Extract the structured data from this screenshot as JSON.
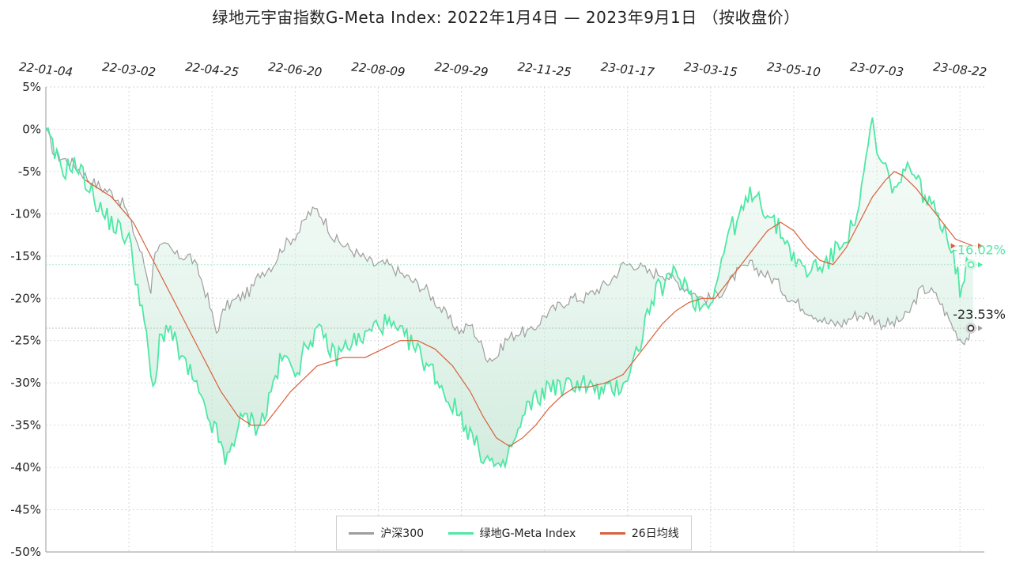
{
  "title": "绿地元宇宙指数G-Meta Index:  2022年1月4日  —  2023年9月1日 （按收盘价）",
  "colors": {
    "hs300": "#9e9e9e",
    "gmeta": "#4de8a4",
    "ma26": "#d9603b",
    "grid": "#d6d6d6"
  },
  "legend": [
    {
      "label": "沪深300",
      "color": "#9e9e9e"
    },
    {
      "label": "绿地G-Meta Index",
      "color": "#4de8a4"
    },
    {
      "label": "26日均线",
      "color": "#d9603b"
    }
  ],
  "end_labels": {
    "gmeta": "-16.02%",
    "hs300": "-23.53%"
  },
  "chart_data": {
    "type": "line",
    "title": "绿地元宇宙指数G-Meta Index:  2022年1月4日  —  2023年9月1日 （按收盘价）",
    "x_ticks": [
      "22-01-04",
      "22-03-02",
      "22-04-25",
      "22-06-20",
      "22-08-09",
      "22-09-29",
      "22-11-25",
      "23-01-17",
      "23-03-15",
      "23-05-10",
      "23-07-03",
      "23-08-22"
    ],
    "x_tick_indices": [
      0,
      38,
      76,
      114,
      152,
      190,
      228,
      266,
      304,
      342,
      380,
      418
    ],
    "x_count": 424,
    "y_ticks": [
      "5%",
      "0%",
      "-5%",
      "-10%",
      "-15%",
      "-20%",
      "-25%",
      "-30%",
      "-35%",
      "-40%",
      "-45%",
      "-50%"
    ],
    "ylim": [
      -50,
      5
    ],
    "grid": true,
    "legend_position": "bottom-center",
    "series": [
      {
        "name": "沪深300",
        "points": [
          [
            0,
            0
          ],
          [
            4,
            -3
          ],
          [
            12,
            -4
          ],
          [
            20,
            -6
          ],
          [
            26,
            -7
          ],
          [
            30,
            -7.5
          ],
          [
            36,
            -9
          ],
          [
            40,
            -12
          ],
          [
            44,
            -15
          ],
          [
            48,
            -19
          ],
          [
            50,
            -14
          ],
          [
            56,
            -14
          ],
          [
            60,
            -15
          ],
          [
            66,
            -15
          ],
          [
            70,
            -17
          ],
          [
            74,
            -20
          ],
          [
            76,
            -22
          ],
          [
            78,
            -24
          ],
          [
            82,
            -21
          ],
          [
            88,
            -20
          ],
          [
            94,
            -19
          ],
          [
            98,
            -17
          ],
          [
            104,
            -16
          ],
          [
            108,
            -14
          ],
          [
            112,
            -13
          ],
          [
            116,
            -12
          ],
          [
            120,
            -10
          ],
          [
            124,
            -9.5
          ],
          [
            128,
            -11
          ],
          [
            132,
            -13
          ],
          [
            138,
            -14
          ],
          [
            144,
            -15
          ],
          [
            150,
            -16
          ],
          [
            156,
            -16
          ],
          [
            162,
            -17
          ],
          [
            168,
            -18
          ],
          [
            174,
            -19
          ],
          [
            180,
            -21
          ],
          [
            186,
            -23
          ],
          [
            190,
            -24
          ],
          [
            194,
            -23
          ],
          [
            198,
            -25
          ],
          [
            202,
            -27
          ],
          [
            206,
            -27
          ],
          [
            210,
            -25
          ],
          [
            216,
            -24
          ],
          [
            222,
            -24
          ],
          [
            228,
            -22
          ],
          [
            234,
            -21
          ],
          [
            240,
            -20
          ],
          [
            246,
            -20
          ],
          [
            252,
            -19
          ],
          [
            258,
            -18
          ],
          [
            264,
            -16
          ],
          [
            270,
            -16
          ],
          [
            276,
            -17
          ],
          [
            282,
            -17
          ],
          [
            288,
            -18
          ],
          [
            294,
            -19
          ],
          [
            300,
            -20
          ],
          [
            304,
            -20
          ],
          [
            310,
            -19
          ],
          [
            316,
            -17
          ],
          [
            322,
            -16
          ],
          [
            328,
            -17
          ],
          [
            334,
            -18
          ],
          [
            340,
            -20
          ],
          [
            346,
            -21
          ],
          [
            352,
            -22
          ],
          [
            358,
            -23
          ],
          [
            364,
            -23
          ],
          [
            370,
            -22
          ],
          [
            376,
            -22
          ],
          [
            382,
            -23
          ],
          [
            388,
            -23
          ],
          [
            394,
            -22
          ],
          [
            400,
            -19
          ],
          [
            404,
            -19
          ],
          [
            408,
            -20
          ],
          [
            412,
            -22
          ],
          [
            416,
            -24
          ],
          [
            419,
            -25
          ],
          [
            422,
            -24.5
          ],
          [
            424,
            -23.53
          ]
        ]
      },
      {
        "name": "绿地G-Meta Index",
        "points": [
          [
            0,
            0
          ],
          [
            4,
            -3
          ],
          [
            8,
            -5
          ],
          [
            12,
            -4
          ],
          [
            16,
            -5
          ],
          [
            18,
            -6
          ],
          [
            22,
            -8
          ],
          [
            26,
            -10
          ],
          [
            30,
            -11
          ],
          [
            34,
            -12
          ],
          [
            38,
            -13
          ],
          [
            40,
            -16
          ],
          [
            44,
            -21
          ],
          [
            46,
            -25
          ],
          [
            48,
            -29
          ],
          [
            50,
            -31
          ],
          [
            52,
            -25
          ],
          [
            56,
            -23
          ],
          [
            60,
            -26
          ],
          [
            64,
            -28
          ],
          [
            68,
            -30
          ],
          [
            72,
            -33
          ],
          [
            76,
            -35
          ],
          [
            80,
            -37
          ],
          [
            82,
            -40
          ],
          [
            84,
            -38
          ],
          [
            88,
            -35
          ],
          [
            92,
            -34
          ],
          [
            96,
            -35
          ],
          [
            100,
            -34
          ],
          [
            104,
            -30
          ],
          [
            108,
            -27
          ],
          [
            112,
            -28
          ],
          [
            116,
            -28
          ],
          [
            120,
            -25
          ],
          [
            124,
            -24
          ],
          [
            128,
            -25
          ],
          [
            132,
            -27
          ],
          [
            136,
            -26
          ],
          [
            140,
            -25
          ],
          [
            144,
            -25
          ],
          [
            148,
            -24
          ],
          [
            152,
            -23
          ],
          [
            156,
            -23
          ],
          [
            160,
            -24
          ],
          [
            166,
            -25
          ],
          [
            172,
            -27
          ],
          [
            178,
            -29
          ],
          [
            184,
            -32
          ],
          [
            190,
            -34
          ],
          [
            194,
            -36
          ],
          [
            198,
            -38
          ],
          [
            202,
            -39
          ],
          [
            206,
            -40
          ],
          [
            208,
            -41
          ],
          [
            212,
            -38
          ],
          [
            216,
            -36
          ],
          [
            220,
            -33
          ],
          [
            224,
            -32
          ],
          [
            228,
            -31
          ],
          [
            232,
            -30
          ],
          [
            236,
            -31
          ],
          [
            240,
            -30
          ],
          [
            246,
            -30
          ],
          [
            252,
            -31
          ],
          [
            258,
            -31
          ],
          [
            264,
            -30
          ],
          [
            268,
            -28
          ],
          [
            272,
            -25
          ],
          [
            276,
            -21
          ],
          [
            280,
            -19
          ],
          [
            284,
            -18
          ],
          [
            288,
            -17
          ],
          [
            292,
            -18
          ],
          [
            296,
            -20
          ],
          [
            300,
            -21
          ],
          [
            304,
            -20
          ],
          [
            308,
            -17
          ],
          [
            312,
            -12
          ],
          [
            316,
            -11
          ],
          [
            320,
            -9
          ],
          [
            324,
            -7
          ],
          [
            328,
            -9
          ],
          [
            332,
            -11
          ],
          [
            336,
            -12
          ],
          [
            340,
            -14
          ],
          [
            344,
            -16
          ],
          [
            348,
            -17
          ],
          [
            352,
            -16
          ],
          [
            356,
            -16
          ],
          [
            360,
            -15
          ],
          [
            364,
            -13
          ],
          [
            368,
            -12
          ],
          [
            372,
            -9
          ],
          [
            374,
            -6
          ],
          [
            376,
            -2
          ],
          [
            378,
            1
          ],
          [
            380,
            -3
          ],
          [
            384,
            -5
          ],
          [
            388,
            -7
          ],
          [
            392,
            -6
          ],
          [
            396,
            -4
          ],
          [
            400,
            -7
          ],
          [
            404,
            -9
          ],
          [
            408,
            -10
          ],
          [
            412,
            -12
          ],
          [
            416,
            -16
          ],
          [
            418,
            -19
          ],
          [
            420,
            -17
          ],
          [
            422,
            -15
          ],
          [
            424,
            -16.02
          ]
        ]
      },
      {
        "name": "26日均线",
        "points": [
          [
            18,
            -6
          ],
          [
            30,
            -8
          ],
          [
            40,
            -11
          ],
          [
            50,
            -16
          ],
          [
            60,
            -21
          ],
          [
            70,
            -26
          ],
          [
            80,
            -31
          ],
          [
            88,
            -34
          ],
          [
            94,
            -35
          ],
          [
            100,
            -35
          ],
          [
            106,
            -33
          ],
          [
            112,
            -31
          ],
          [
            118,
            -29.5
          ],
          [
            124,
            -28
          ],
          [
            130,
            -27.5
          ],
          [
            136,
            -27
          ],
          [
            146,
            -27
          ],
          [
            154,
            -26
          ],
          [
            162,
            -25
          ],
          [
            170,
            -25
          ],
          [
            178,
            -26
          ],
          [
            186,
            -28
          ],
          [
            194,
            -31
          ],
          [
            200,
            -34
          ],
          [
            206,
            -36.5
          ],
          [
            212,
            -37.5
          ],
          [
            218,
            -36.5
          ],
          [
            224,
            -35
          ],
          [
            230,
            -33
          ],
          [
            236,
            -31.5
          ],
          [
            242,
            -30.5
          ],
          [
            248,
            -30.5
          ],
          [
            256,
            -30
          ],
          [
            264,
            -29
          ],
          [
            270,
            -27
          ],
          [
            276,
            -25
          ],
          [
            282,
            -23
          ],
          [
            288,
            -21.5
          ],
          [
            294,
            -20.5
          ],
          [
            300,
            -20
          ],
          [
            306,
            -20
          ],
          [
            312,
            -18
          ],
          [
            318,
            -16
          ],
          [
            324,
            -14
          ],
          [
            330,
            -12
          ],
          [
            336,
            -11
          ],
          [
            342,
            -12
          ],
          [
            348,
            -14
          ],
          [
            354,
            -15.5
          ],
          [
            360,
            -16
          ],
          [
            366,
            -14
          ],
          [
            372,
            -11
          ],
          [
            378,
            -8
          ],
          [
            384,
            -6
          ],
          [
            388,
            -5
          ],
          [
            392,
            -5.5
          ],
          [
            398,
            -7
          ],
          [
            404,
            -9
          ],
          [
            410,
            -11
          ],
          [
            416,
            -13
          ],
          [
            424,
            -13.8
          ]
        ]
      }
    ]
  }
}
